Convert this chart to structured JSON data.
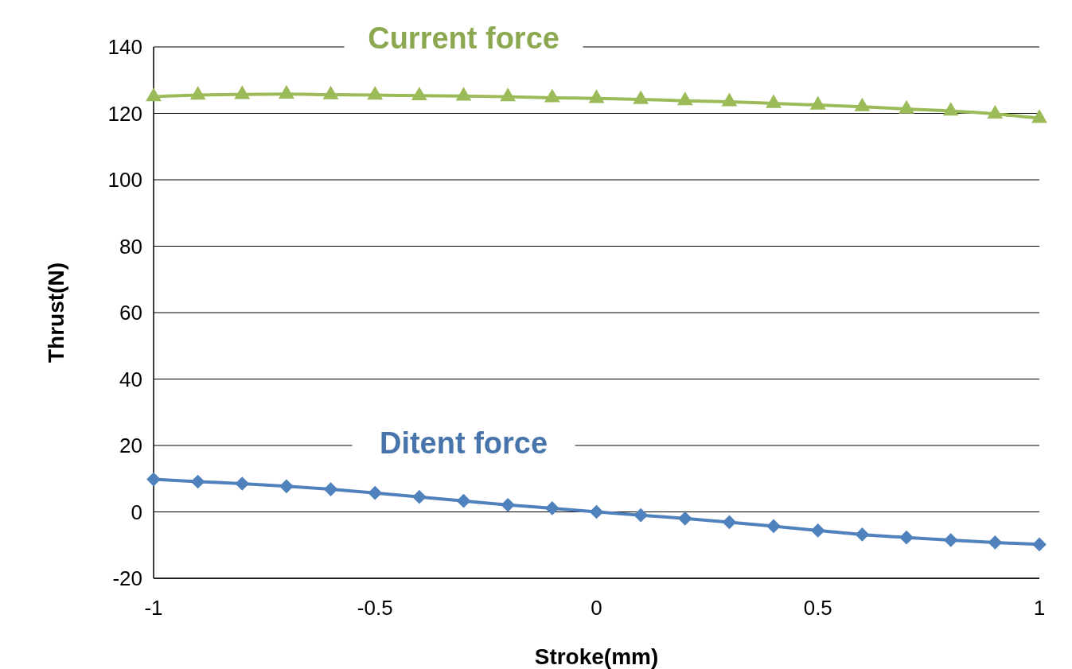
{
  "chart_data": {
    "type": "line",
    "xlabel": "Stroke(mm)",
    "ylabel": "Thrust(N)",
    "x": [
      -1,
      -0.9,
      -0.8,
      -0.7,
      -0.6,
      -0.5,
      -0.4,
      -0.3,
      -0.2,
      -0.1,
      0,
      0.1,
      0.2,
      0.3,
      0.4,
      0.5,
      0.6,
      0.7,
      0.8,
      0.9,
      1
    ],
    "series": [
      {
        "name": "Current force",
        "color": "#9bbb59",
        "marker": "triangle",
        "values": [
          125,
          125.5,
          125.7,
          125.8,
          125.6,
          125.5,
          125.3,
          125.2,
          125,
          124.7,
          124.5,
          124.2,
          123.8,
          123.5,
          123,
          122.5,
          122,
          121.3,
          120.7,
          119.8,
          118.5
        ]
      },
      {
        "name": "Ditent force",
        "color": "#4f81bd",
        "marker": "diamond",
        "values": [
          9.8,
          9.1,
          8.5,
          7.7,
          6.8,
          5.7,
          4.5,
          3.3,
          2.1,
          1.1,
          0,
          -1,
          -2,
          -3.1,
          -4.3,
          -5.6,
          -6.8,
          -7.7,
          -8.5,
          -9.2,
          -9.8
        ]
      }
    ],
    "xlim": [
      -1,
      1
    ],
    "xticks": [
      -1,
      -0.5,
      0,
      0.5,
      1
    ],
    "ylim": [
      -20,
      140
    ],
    "yticks": [
      -20,
      0,
      20,
      40,
      60,
      80,
      100,
      120,
      140
    ],
    "grid": "y"
  }
}
